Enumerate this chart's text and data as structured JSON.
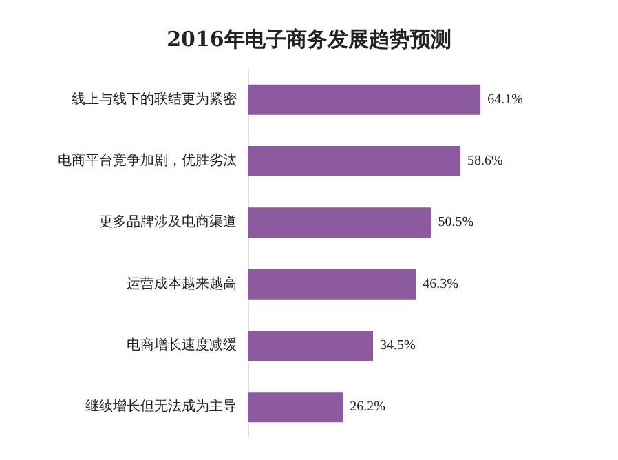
{
  "chart_data": {
    "type": "bar",
    "orientation": "horizontal",
    "title": "2016年电子商务发展趋势预测",
    "categories": [
      "线上与线下的联结更为紧密",
      "电商平台竞争加剧，优胜劣汰",
      "更多品牌涉及电商渠道",
      "运营成本越来越高",
      "电商增长速度减缓",
      "继续增长但无法成为主导"
    ],
    "values": [
      64.1,
      58.6,
      50.5,
      46.3,
      34.5,
      26.2
    ],
    "value_labels": [
      "64.1%",
      "58.6%",
      "50.5%",
      "46.3%",
      "34.5%",
      "26.2%"
    ],
    "color": "#8b5a9f"
  }
}
